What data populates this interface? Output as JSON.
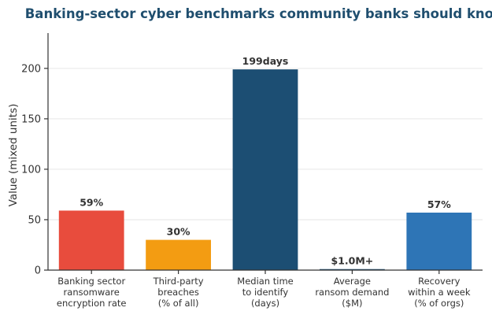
{
  "chart_data": {
    "type": "bar",
    "title": "Banking-sector cyber benchmarks community banks should know",
    "xlabel": "",
    "ylabel": "Value (mixed units)",
    "ylim": [
      0,
      235
    ],
    "yticks": [
      0,
      50,
      100,
      150,
      200
    ],
    "grid": true,
    "categories": [
      [
        "Banking sector",
        "ransomware",
        "encryption rate"
      ],
      [
        "Third-party",
        "breaches",
        "(% of all)"
      ],
      [
        "Median time",
        "to identify",
        "(days)"
      ],
      [
        "Average",
        "ransom demand",
        "($M)"
      ],
      [
        "Recovery",
        "within a week",
        "(% of orgs)"
      ]
    ],
    "values": [
      59,
      30,
      199,
      1.0,
      57
    ],
    "data_labels": [
      "59%",
      "30%",
      "199days",
      "$1.0M+",
      "57%"
    ],
    "colors": [
      "#e84c3d",
      "#f39c12",
      "#1c4e73",
      "#1c4e73",
      "#2e75b6"
    ]
  }
}
